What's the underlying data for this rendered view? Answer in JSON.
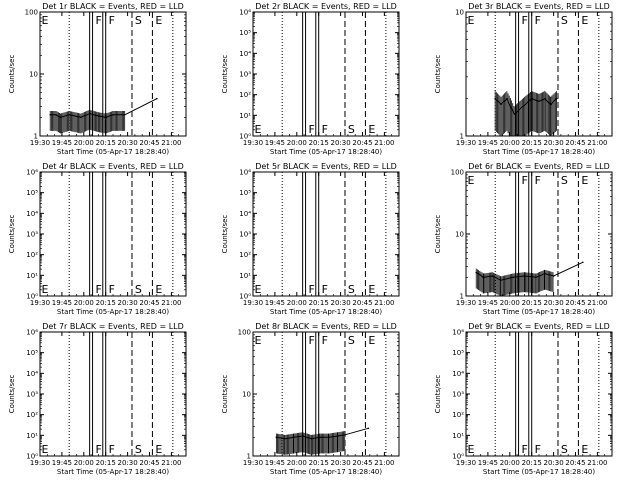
{
  "x_axis_title": "Start Time (05-Apr-17 18:28:40)",
  "y_axis_title": "Counts/sec",
  "x_tick_labels": [
    "19:30",
    "19:45",
    "20:00",
    "20:15",
    "20:30",
    "20:45",
    "21:00"
  ],
  "x_range_minutes_after_19_30": [
    0,
    100
  ],
  "marker_lines": [
    {
      "kind": "dotted",
      "minute": 20
    },
    {
      "kind": "solid",
      "minute": 34
    },
    {
      "kind": "solid",
      "minute": 36
    },
    {
      "kind": "solid",
      "minute": 43
    },
    {
      "kind": "solid",
      "minute": 45
    },
    {
      "kind": "dashed",
      "minute": 63
    },
    {
      "kind": "dashed",
      "minute": 77
    },
    {
      "kind": "dotted",
      "minute": 91
    }
  ],
  "chart_data": [
    {
      "type": "line",
      "title": "Det 1r BLACK = Events, RED = LLD",
      "xlabel": "Start Time (05-Apr-17 18:28:40)",
      "ylabel": "Counts/sec",
      "y_scale": "log",
      "ylim": [
        1,
        100
      ],
      "y_tick_labels": [
        "1",
        "10",
        "100"
      ],
      "letters": [
        {
          "text": "E",
          "minute": 1,
          "level": "top"
        },
        {
          "text": "F",
          "minute": 38,
          "level": "top"
        },
        {
          "text": "F",
          "minute": 47,
          "level": "top"
        },
        {
          "text": "S",
          "minute": 65,
          "level": "top"
        },
        {
          "text": "E",
          "minute": 79,
          "level": "top"
        }
      ],
      "series": [
        {
          "values": [
            [
              7,
              2.2
            ],
            [
              11,
              2.2
            ],
            [
              14,
              2
            ],
            [
              20,
              2.2
            ],
            [
              28,
              2
            ],
            [
              34,
              2.3
            ],
            [
              40,
              2.1
            ],
            [
              45,
              2
            ],
            [
              50,
              2.2
            ],
            [
              58,
              2.2
            ],
            [
              80,
              4
            ]
          ]
        }
      ]
    },
    {
      "type": "line",
      "title": "Det 2r BLACK = Events, RED = LLD",
      "xlabel": "Start Time (05-Apr-17 18:28:40)",
      "ylabel": "Counts/sec",
      "y_scale": "log",
      "ylim": [
        1,
        1000000
      ],
      "y_tick_labels": [
        "10⁰",
        "10¹",
        "10²",
        "10³",
        "10⁴",
        "10⁵",
        "10⁶"
      ],
      "letters": [
        {
          "text": "E",
          "minute": 1,
          "level": "bottom"
        },
        {
          "text": "F",
          "minute": 38,
          "level": "bottom"
        },
        {
          "text": "F",
          "minute": 47,
          "level": "bottom"
        },
        {
          "text": "S",
          "minute": 65,
          "level": "bottom"
        },
        {
          "text": "E",
          "minute": 79,
          "level": "bottom"
        }
      ],
      "series": []
    },
    {
      "type": "line",
      "title": "Det 3r BLACK = Events, RED = LLD",
      "xlabel": "Start Time (05-Apr-17 18:28:40)",
      "ylabel": "Counts/sec",
      "y_scale": "log",
      "ylim": [
        1,
        10
      ],
      "y_tick_labels": [
        "1",
        "10"
      ],
      "letters": [
        {
          "text": "E",
          "minute": 1,
          "level": "top"
        },
        {
          "text": "F",
          "minute": 38,
          "level": "top"
        },
        {
          "text": "F",
          "minute": 47,
          "level": "top"
        },
        {
          "text": "S",
          "minute": 65,
          "level": "top"
        },
        {
          "text": "E",
          "minute": 79,
          "level": "top"
        }
      ],
      "series": [
        {
          "values": [
            [
              20,
              2
            ],
            [
              24,
              1.8
            ],
            [
              28,
              2
            ],
            [
              33,
              1.5
            ],
            [
              45,
              2
            ],
            [
              50,
              1.9
            ],
            [
              54,
              2
            ],
            [
              58,
              1.8
            ],
            [
              62,
              2
            ]
          ]
        }
      ]
    },
    {
      "type": "line",
      "title": "Det 4r BLACK = Events, RED = LLD",
      "xlabel": "Start Time (05-Apr-17 18:28:40)",
      "ylabel": "Counts/sec",
      "y_scale": "log",
      "ylim": [
        1,
        1000000
      ],
      "y_tick_labels": [
        "10⁰",
        "10¹",
        "10²",
        "10³",
        "10⁴",
        "10⁵",
        "10⁶"
      ],
      "letters": [
        {
          "text": "E",
          "minute": 1,
          "level": "bottom"
        },
        {
          "text": "F",
          "minute": 38,
          "level": "bottom"
        },
        {
          "text": "F",
          "minute": 47,
          "level": "bottom"
        },
        {
          "text": "S",
          "minute": 65,
          "level": "bottom"
        },
        {
          "text": "E",
          "minute": 79,
          "level": "bottom"
        }
      ],
      "series": []
    },
    {
      "type": "line",
      "title": "Det 5r BLACK = Events, RED = LLD",
      "xlabel": "Start Time (05-Apr-17 18:28:40)",
      "ylabel": "Counts/sec",
      "y_scale": "log",
      "ylim": [
        1,
        1000000
      ],
      "y_tick_labels": [
        "10⁰",
        "10¹",
        "10²",
        "10³",
        "10⁴",
        "10⁵",
        "10⁶"
      ],
      "letters": [
        {
          "text": "E",
          "minute": 1,
          "level": "bottom"
        },
        {
          "text": "F",
          "minute": 38,
          "level": "bottom"
        },
        {
          "text": "F",
          "minute": 47,
          "level": "bottom"
        },
        {
          "text": "S",
          "minute": 65,
          "level": "bottom"
        },
        {
          "text": "E",
          "minute": 79,
          "level": "bottom"
        }
      ],
      "series": []
    },
    {
      "type": "line",
      "title": "Det 6r BLACK = Events, RED = LLD",
      "xlabel": "Start Time (05-Apr-17 18:28:40)",
      "ylabel": "Counts/sec",
      "y_scale": "log",
      "ylim": [
        1,
        100
      ],
      "y_tick_labels": [
        "1",
        "10",
        "100"
      ],
      "letters": [
        {
          "text": "E",
          "minute": 1,
          "level": "top"
        },
        {
          "text": "F",
          "minute": 38,
          "level": "top"
        },
        {
          "text": "F",
          "minute": 47,
          "level": "top"
        },
        {
          "text": "S",
          "minute": 65,
          "level": "top"
        },
        {
          "text": "E",
          "minute": 79,
          "level": "top"
        }
      ],
      "series": [
        {
          "values": [
            [
              7,
              2.4
            ],
            [
              12,
              2
            ],
            [
              18,
              2.1
            ],
            [
              24,
              1.8
            ],
            [
              32,
              2
            ],
            [
              40,
              2.1
            ],
            [
              48,
              2
            ],
            [
              54,
              2.3
            ],
            [
              60,
              2.1
            ],
            [
              80,
              3.5
            ]
          ]
        }
      ]
    },
    {
      "type": "line",
      "title": "Det 7r BLACK = Events, RED = LLD",
      "xlabel": "Start Time (05-Apr-17 18:28:40)",
      "ylabel": "Counts/sec",
      "y_scale": "log",
      "ylim": [
        1,
        1000000
      ],
      "y_tick_labels": [
        "10⁰",
        "10¹",
        "10²",
        "10³",
        "10⁴",
        "10⁵",
        "10⁶"
      ],
      "letters": [
        {
          "text": "E",
          "minute": 1,
          "level": "bottom"
        },
        {
          "text": "F",
          "minute": 38,
          "level": "bottom"
        },
        {
          "text": "F",
          "minute": 47,
          "level": "bottom"
        },
        {
          "text": "S",
          "minute": 65,
          "level": "bottom"
        },
        {
          "text": "E",
          "minute": 79,
          "level": "bottom"
        }
      ],
      "series": []
    },
    {
      "type": "line",
      "title": "Det 8r BLACK = Events, RED = LLD",
      "xlabel": "Start Time (05-Apr-17 18:28:40)",
      "ylabel": "Counts/sec",
      "y_scale": "log",
      "ylim": [
        1,
        100
      ],
      "y_tick_labels": [
        "1",
        "10",
        "100"
      ],
      "letters": [
        {
          "text": "E",
          "minute": 1,
          "level": "top"
        },
        {
          "text": "F",
          "minute": 38,
          "level": "top"
        },
        {
          "text": "F",
          "minute": 47,
          "level": "top"
        },
        {
          "text": "S",
          "minute": 65,
          "level": "top"
        },
        {
          "text": "E",
          "minute": 79,
          "level": "top"
        }
      ],
      "series": [
        {
          "values": [
            [
              16,
              2
            ],
            [
              22,
              1.9
            ],
            [
              28,
              2
            ],
            [
              34,
              2.1
            ],
            [
              40,
              1.9
            ],
            [
              46,
              2
            ],
            [
              52,
              2
            ],
            [
              58,
              2.1
            ],
            [
              63,
              2.2
            ],
            [
              79,
              2.8
            ]
          ]
        }
      ]
    },
    {
      "type": "line",
      "title": "Det 9r BLACK = Events, RED = LLD",
      "xlabel": "Start Time (05-Apr-17 18:28:40)",
      "ylabel": "Counts/sec",
      "y_scale": "log",
      "ylim": [
        1,
        1000000
      ],
      "y_tick_labels": [
        "10⁰",
        "10¹",
        "10²",
        "10³",
        "10⁴",
        "10⁵",
        "10⁶"
      ],
      "letters": [
        {
          "text": "E",
          "minute": 1,
          "level": "bottom"
        },
        {
          "text": "F",
          "minute": 38,
          "level": "bottom"
        },
        {
          "text": "F",
          "minute": 47,
          "level": "bottom"
        },
        {
          "text": "S",
          "minute": 65,
          "level": "bottom"
        },
        {
          "text": "E",
          "minute": 79,
          "level": "bottom"
        }
      ],
      "series": []
    }
  ]
}
